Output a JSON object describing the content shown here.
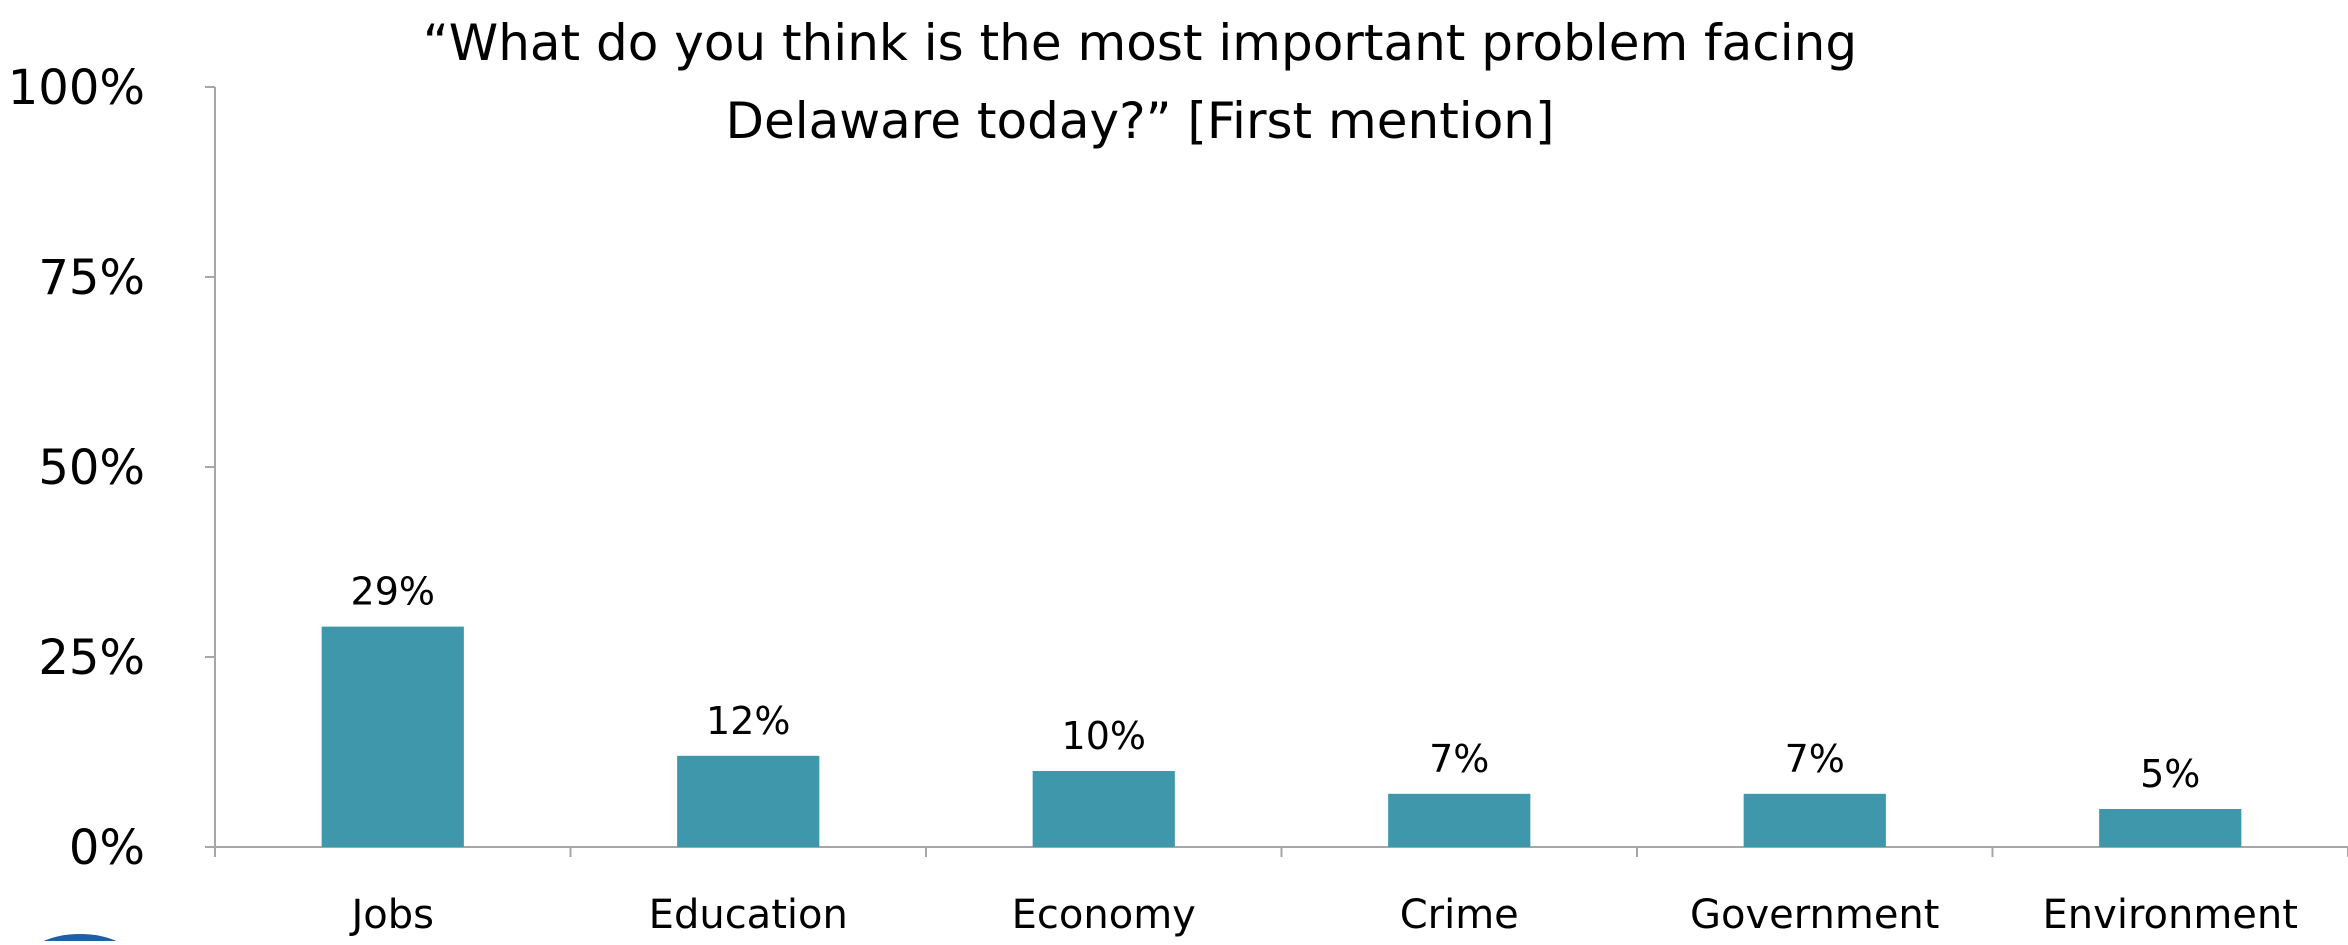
{
  "chart_data": {
    "type": "bar",
    "title": "“What do you think is the most important problem facing Delaware today?” [First mention]",
    "categories": [
      "Jobs",
      "Education",
      "Economy",
      "Crime",
      "Government",
      "Environment"
    ],
    "values": [
      29,
      12,
      10,
      7,
      7,
      5
    ],
    "data_labels": [
      "29%",
      "12%",
      "10%",
      "7%",
      "7%",
      "5%"
    ],
    "y_ticks": [
      0,
      25,
      50,
      75,
      100
    ],
    "y_tick_labels": [
      "0%",
      "25%",
      "50%",
      "75%",
      "100%"
    ],
    "ylim": [
      0,
      100
    ],
    "xlabel": "",
    "ylabel": "",
    "grid": false,
    "legend": "none",
    "bar_color": "#3E97AB",
    "axis_color": "#A6A6A6"
  }
}
